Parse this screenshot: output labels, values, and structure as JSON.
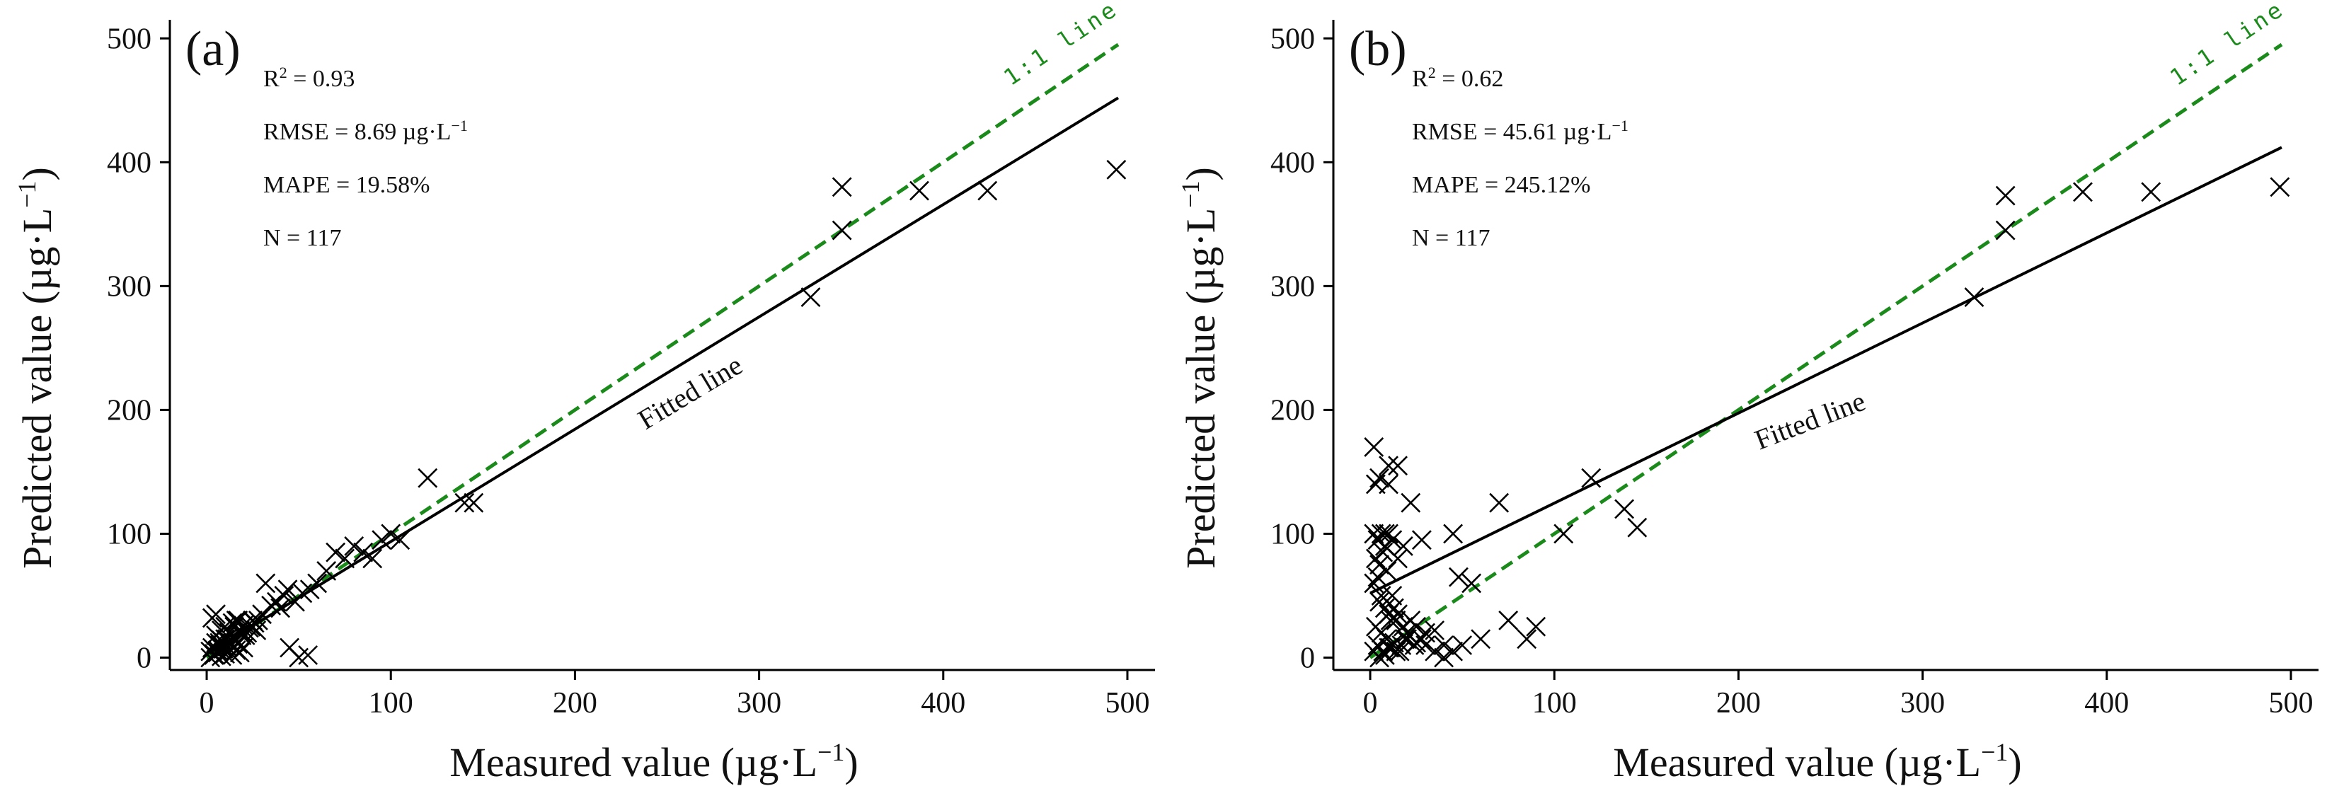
{
  "panels": [
    {
      "label": "(a)",
      "stats": {
        "r2_prefix": "R",
        "r2_sup": "2",
        "r2_value": " = 0.93",
        "rmse_prefix": "RMSE = 8.69  µg·L",
        "rmse_sup": "−1",
        "mape": "MAPE = 19.58%",
        "n": "N = 117"
      },
      "fitted_label": "Fitted line",
      "one_to_one_label": "1:1 line",
      "xlabel_prefix": "Measured value (µg·L",
      "xlabel_sup": "−1",
      "xlabel_suffix": ")",
      "ylabel_prefix": "Predicted value (µg·L",
      "ylabel_sup": "−1",
      "ylabel_suffix": ")"
    },
    {
      "label": "(b)",
      "stats": {
        "r2_prefix": "R",
        "r2_sup": "2",
        "r2_value": " = 0.62",
        "rmse_prefix": "RMSE = 45.61  µg·L",
        "rmse_sup": "−1",
        "mape": "MAPE = 245.12%",
        "n": "N = 117"
      },
      "fitted_label": "Fitted line",
      "one_to_one_label": "1:1 line",
      "xlabel_prefix": "Measured value (µg·L",
      "xlabel_sup": "−1",
      "xlabel_suffix": ")",
      "ylabel_prefix": "Predicted value (µg·L",
      "ylabel_sup": "−1",
      "ylabel_suffix": ")"
    }
  ],
  "chart_data": [
    {
      "type": "scatter",
      "title": "(a)",
      "xlabel": "Measured value (µg·L−1)",
      "ylabel": "Predicted value (µg·L−1)",
      "xlim": [
        -20,
        515
      ],
      "ylim": [
        -10,
        515
      ],
      "xticks": [
        0,
        100,
        200,
        300,
        400,
        500
      ],
      "yticks": [
        0,
        100,
        200,
        300,
        400,
        500
      ],
      "marker": "x",
      "x": [
        2,
        3,
        4,
        5,
        5,
        6,
        7,
        8,
        8,
        9,
        10,
        10,
        11,
        12,
        13,
        14,
        15,
        16,
        17,
        18,
        19,
        20,
        22,
        24,
        25,
        27,
        30,
        2,
        4,
        6,
        8,
        10,
        12,
        14,
        16,
        18,
        20,
        3,
        5,
        7,
        9,
        11,
        13,
        15,
        17,
        19,
        21,
        23,
        26,
        28,
        32,
        35,
        38,
        40,
        42,
        44,
        48,
        52,
        56,
        60,
        65,
        70,
        75,
        80,
        85,
        90,
        95,
        100,
        105,
        120,
        140,
        145,
        45,
        50,
        55,
        328,
        345,
        345,
        387,
        424,
        494
      ],
      "y": [
        5,
        8,
        3,
        12,
        18,
        6,
        10,
        14,
        22,
        7,
        15,
        25,
        9,
        20,
        12,
        28,
        16,
        30,
        11,
        22,
        18,
        26,
        20,
        25,
        30,
        22,
        35,
        0,
        2,
        4,
        1,
        3,
        5,
        2,
        6,
        4,
        8,
        32,
        35,
        12,
        8,
        15,
        10,
        25,
        30,
        20,
        18,
        24,
        28,
        30,
        60,
        42,
        45,
        40,
        50,
        55,
        45,
        52,
        55,
        60,
        70,
        85,
        80,
        90,
        85,
        80,
        95,
        100,
        95,
        145,
        125,
        125,
        8,
        0,
        2,
        291,
        345,
        380,
        377,
        377,
        394
      ],
      "fitted_line": {
        "x": [
          0,
          495
        ],
        "y": [
          3,
          452
        ]
      },
      "one_to_one_line": {
        "x": [
          0,
          495
        ],
        "y": [
          0,
          495
        ]
      },
      "stats": {
        "R2": 0.93,
        "RMSE": 8.69,
        "MAPE_percent": 19.58,
        "N": 117
      }
    },
    {
      "type": "scatter",
      "title": "(b)",
      "xlabel": "Measured value (µg·L−1)",
      "ylabel": "Predicted value (µg·L−1)",
      "xlim": [
        -20,
        515
      ],
      "ylim": [
        -10,
        515
      ],
      "xticks": [
        0,
        100,
        200,
        300,
        400,
        500
      ],
      "yticks": [
        0,
        100,
        200,
        300,
        400,
        500
      ],
      "marker": "x",
      "x": [
        2,
        3,
        5,
        8,
        10,
        2,
        4,
        6,
        8,
        10,
        3,
        5,
        7,
        9,
        12,
        2,
        4,
        6,
        15,
        5,
        8,
        10,
        12,
        14,
        3,
        6,
        9,
        11,
        13,
        15,
        18,
        20,
        22,
        25,
        28,
        30,
        35,
        40,
        4,
        7,
        10,
        13,
        16,
        19,
        24,
        2,
        5,
        8,
        11,
        14,
        17,
        20,
        25,
        30,
        35,
        40,
        45,
        50,
        55,
        60,
        70,
        75,
        85,
        90,
        28,
        45,
        48,
        105,
        120,
        138,
        145,
        22,
        18,
        15,
        10,
        328,
        345,
        345,
        387,
        424,
        494
      ],
      "y": [
        170,
        140,
        145,
        100,
        155,
        100,
        95,
        100,
        90,
        100,
        80,
        75,
        85,
        70,
        95,
        60,
        65,
        50,
        80,
        45,
        40,
        35,
        50,
        30,
        25,
        20,
        15,
        30,
        40,
        35,
        25,
        20,
        30,
        25,
        15,
        20,
        22,
        10,
        10,
        5,
        8,
        12,
        5,
        15,
        10,
        5,
        0,
        2,
        8,
        5,
        10,
        15,
        12,
        10,
        5,
        0,
        5,
        10,
        60,
        15,
        125,
        30,
        15,
        25,
        95,
        100,
        65,
        100,
        145,
        120,
        105,
        125,
        90,
        155,
        140,
        291,
        345,
        373,
        376,
        376,
        380
      ],
      "fitted_line": {
        "x": [
          0,
          495
        ],
        "y": [
          52,
          412
        ]
      },
      "one_to_one_line": {
        "x": [
          0,
          495
        ],
        "y": [
          0,
          495
        ]
      },
      "stats": {
        "R2": 0.62,
        "RMSE": 45.61,
        "MAPE_percent": 245.12,
        "N": 117
      }
    }
  ]
}
